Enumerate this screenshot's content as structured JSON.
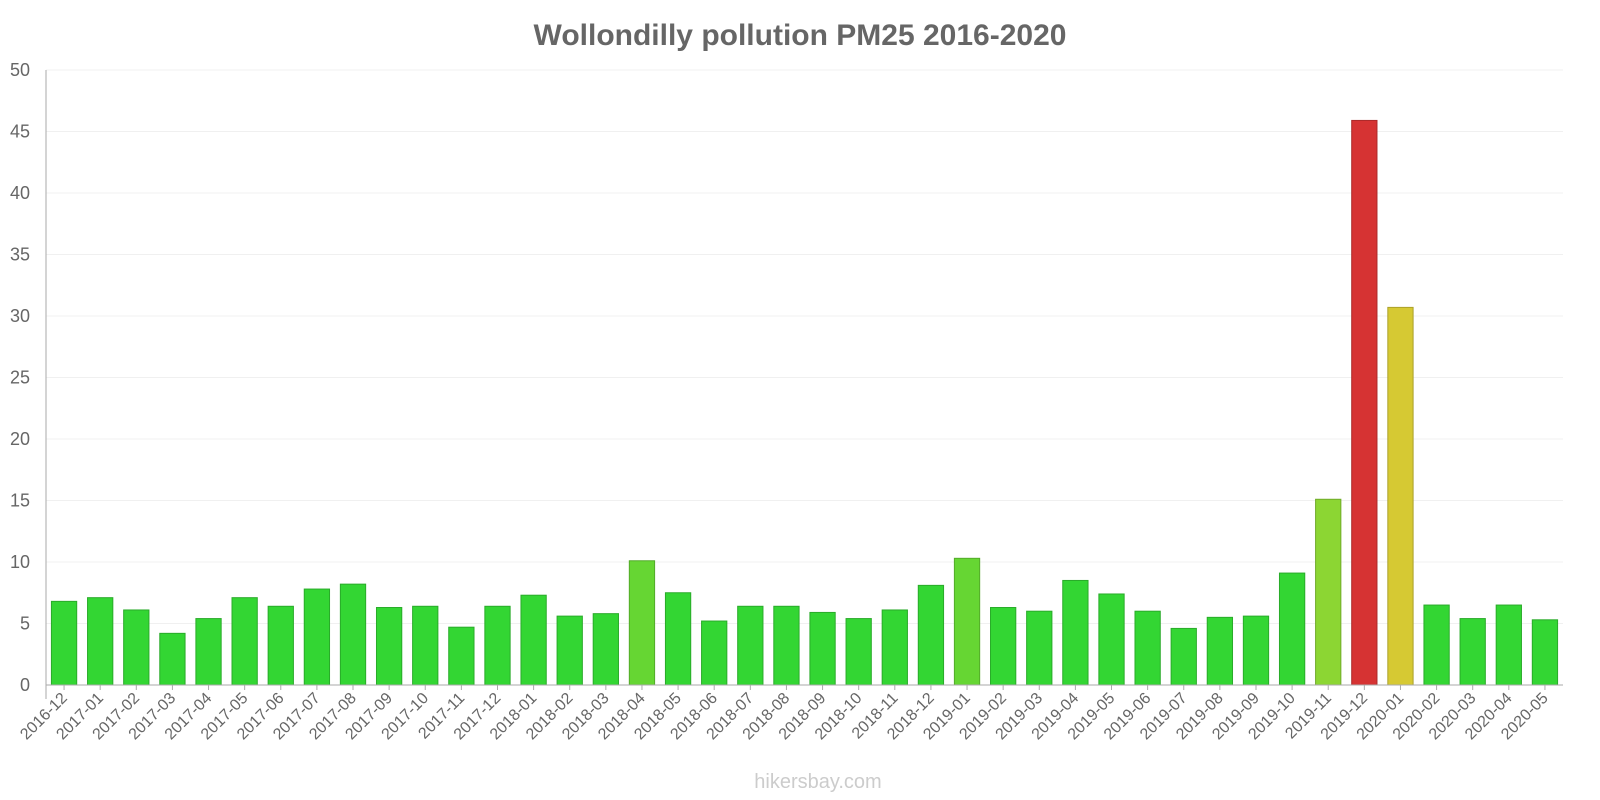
{
  "chart_data": {
    "type": "bar",
    "title": "Wollondilly pollution PM25 2016-2020",
    "xlabel": "",
    "ylabel": "",
    "ylim": [
      0,
      50
    ],
    "yticks": [
      0,
      5,
      10,
      15,
      20,
      25,
      30,
      35,
      40,
      45,
      50
    ],
    "grid": true,
    "legend": "none",
    "categories": [
      "2016-12",
      "2017-01",
      "2017-02",
      "2017-03",
      "2017-04",
      "2017-05",
      "2017-06",
      "2017-07",
      "2017-08",
      "2017-09",
      "2017-10",
      "2017-11",
      "2017-12",
      "2018-01",
      "2018-02",
      "2018-03",
      "2018-04",
      "2018-05",
      "2018-06",
      "2018-07",
      "2018-08",
      "2018-09",
      "2018-10",
      "2018-11",
      "2018-12",
      "2019-01",
      "2019-02",
      "2019-03",
      "2019-04",
      "2019-05",
      "2019-06",
      "2019-07",
      "2019-08",
      "2019-09",
      "2019-10",
      "2019-11",
      "2019-12",
      "2020-01",
      "2020-02",
      "2020-03",
      "2020-04",
      "2020-05"
    ],
    "values": [
      6.8,
      7.1,
      6.1,
      4.2,
      5.4,
      7.1,
      6.4,
      7.8,
      8.2,
      6.3,
      6.4,
      4.7,
      6.4,
      7.3,
      5.6,
      5.8,
      10.1,
      7.5,
      5.2,
      6.4,
      6.4,
      5.9,
      5.4,
      6.1,
      8.1,
      10.3,
      6.3,
      6.0,
      8.5,
      7.4,
      6.0,
      4.6,
      5.5,
      5.6,
      9.1,
      15.1,
      45.9,
      30.7,
      6.5,
      5.4,
      6.5,
      5.3
    ],
    "colors": {
      "good": "#33d633",
      "good_stroke": "#29ab29",
      "fair": "#66d633",
      "fair_stroke": "#52ab29",
      "moderate": "#8cd633",
      "moderate_stroke": "#70ab29",
      "poor": "#d6c933",
      "poor_stroke": "#aba129",
      "very_poor": "#d63333",
      "very_poor_stroke": "#ab2929",
      "axis": "#aaaaaa",
      "grid": "#f0f0f0"
    }
  },
  "credit": "hikersbay.com"
}
